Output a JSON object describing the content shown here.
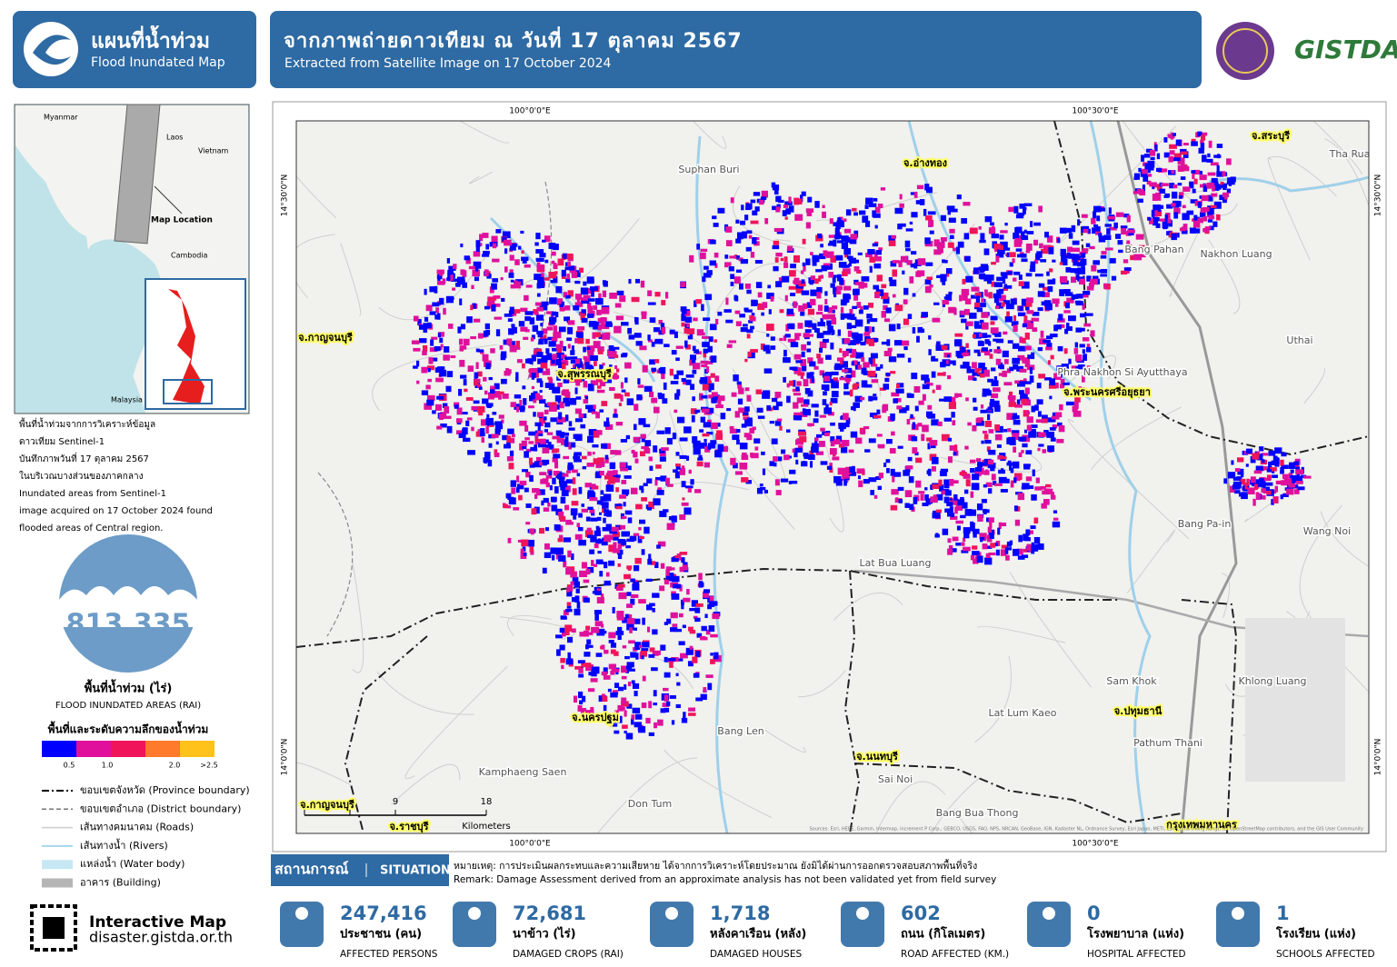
{
  "header": {
    "title_th": "แผนที่น้ำท่วม",
    "title_en": "Flood Inundated Map",
    "main_title": "จากภาพถ่ายดาวเทียม ณ วันที่ 17 ตุลาคม 2567",
    "subtitle": "Extracted from Satellite Image on 17 October 2024",
    "logo": "GISTDA"
  },
  "inset": {
    "labels": [
      "Myanmar",
      "Laos",
      "Vietnam",
      "Cambodia",
      "Malaysia"
    ],
    "location_label": "Map Location"
  },
  "description": [
    "พื้นที่น้ำท่วมจากการวิเคราะห์ข้อมูล",
    "ดาวเทียม Sentinel-1",
    "บันทึกภาพวันที่ 17 ตุลาคม 2567",
    "ในบริเวณบางส่วนของภาคกลาง",
    "Inundated areas from Sentinel-1",
    "image acquired on 17 October 2024 found",
    "flooded areas of Central region."
  ],
  "flood_area": {
    "value": "813,335",
    "label_th": "พื้นที่น้ำท่วม (ไร่)",
    "label_en": "FLOOD INUNDATED AREAS (RAI)"
  },
  "legend": {
    "title": "พื้นที่และระดับความลึกของน้ำท่วม",
    "colors": [
      "#0000ff",
      "#e0109c",
      "#f0145a",
      "#ff7a2a",
      "#ffc21a"
    ],
    "depth_labels": [
      "0.5",
      "1.0",
      "2.0",
      ">2.5"
    ],
    "lines": [
      "ขอบเขตจังหวัด (Province boundary)",
      "ขอบเขตอำเภอ (District boundary)",
      "เส้นทางคมนาคม (Roads)",
      "เส้นทางน้ำ (Rivers)",
      "แหล่งน้ำ (Water body)",
      "อาคาร (Building)"
    ]
  },
  "map": {
    "coords": [
      "100°0'0\"E",
      "100°30'0\"E",
      "14°30'0\"N",
      "14°0'0\"N"
    ],
    "places": [
      "จ.อ่างทอง",
      "จ.สระบุรี",
      "จ.กาญจนบุรี",
      "จ.สุพรรณบุรี",
      "จ.พระนครศรีอยุธยา",
      "จ.นครปฐม",
      "จ.นนทบุรี",
      "จ.ปทุมธานี",
      "จ.ราชบุรี",
      "กรุงเทพมหานคร"
    ],
    "towns": [
      "Suphan Buri",
      "Bang Pahan",
      "Nakhon Luang",
      "Uthai",
      "Phra Nakhon Si Ayutthaya",
      "Lat Bua Luang",
      "Bang Pa-in",
      "Wang Noi",
      "Bang Len",
      "Kamphaeng Saen",
      "Don Tum",
      "Sam Khok",
      "Lat Lum Kaeo",
      "Pathum Thani",
      "Sai Noi",
      "Bang Bua Thong",
      "Khlong Luang",
      "Tha Rua"
    ],
    "scale": [
      "9",
      "18",
      "Kilometers"
    ],
    "credits": "Sources: Esri, HERE, Garmin, Intermap, increment P Corp., GEBCO, USGS, FAO, NPS, NRCAN, GeoBase, IGN, Kadaster NL, Ordnance Survey, Esri Japan, METI, Esri China (Hong Kong), (c) OpenStreetMap contributors, and the GIS User Community"
  },
  "situation": {
    "label_th": "สถานการณ์",
    "label_en": "SITUATION",
    "remark_th": "หมายเหตุ: การประเมินผลกระทบและความเสียหาย ได้จากการวิเคราะห์โดยประมาณ ยังมิได้ผ่านการออกตรวจสอบสภาพพื้นที่จริง",
    "remark_en": "Remark: Damage Assessment derived from an approximate analysis has not been validated yet from field survey"
  },
  "stats": [
    {
      "value": "247,416",
      "label_th": "ประชาชน (คน)",
      "label_en": "AFFECTED PERSONS"
    },
    {
      "value": "72,681",
      "label_th": "นาข้าว (ไร่)",
      "label_en": "DAMAGED CROPS (RAI)"
    },
    {
      "value": "1,718",
      "label_th": "หลังคาเรือน (หลัง)",
      "label_en": "DAMAGED HOUSES"
    },
    {
      "value": "602",
      "label_th": "ถนน (กิโลเมตร)",
      "label_en": "ROAD AFFECTED (KM.)"
    },
    {
      "value": "0",
      "label_th": "โรงพยาบาล (แห่ง)",
      "label_en": "HOSPITAL AFFECTED"
    },
    {
      "value": "1",
      "label_th": "โรงเรียน (แห่ง)",
      "label_en": "SCHOOLS AFFECTED"
    }
  ],
  "interactive": {
    "title": "Interactive Map",
    "url": "disaster.gistda.or.th"
  }
}
